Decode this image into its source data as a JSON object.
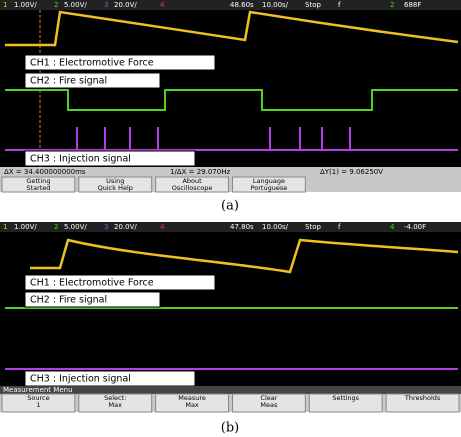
{
  "panels": [
    {
      "top_bar": [
        "1",
        "1.00V/",
        "2",
        "5.00V/",
        "3",
        "20.0V/",
        "4",
        "48.60s",
        "10.00s/",
        "Stop",
        "f",
        "2",
        "688F"
      ],
      "labels": [
        "CH1 : Electromotive Force",
        "CH2 : Fire signal",
        "CH3 : Injection signal"
      ],
      "status": [
        "ΔX = 34.400000000ms",
        "1/ΔX = 29.070Hz",
        "ΔY(1) = 9.06250V"
      ],
      "softkeys": [
        [
          "Getting",
          "Started"
        ],
        [
          "Using",
          "Quick Help"
        ],
        [
          "About",
          "Oscilloscope"
        ],
        [
          "Language",
          "Portuguese"
        ]
      ],
      "caption": "(a)"
    },
    {
      "top_bar": [
        "1",
        "1.00V/",
        "2",
        "5.00V/",
        "3",
        "20.0V/",
        "4",
        "47.80s",
        "10.00s/",
        "Stop",
        "f",
        "4",
        "-4.00F"
      ],
      "labels": [
        "CH1 : Electromotive Force",
        "CH2 : Fire signal",
        "CH3 : Injection signal"
      ],
      "menu_title": "Measurement Menu",
      "softkeys": [
        [
          "Source",
          "1"
        ],
        [
          "Select:",
          "Max"
        ],
        [
          "Measure",
          "Max"
        ],
        [
          "Clear",
          "Meas"
        ],
        [
          "Settings"
        ],
        [
          "Thresholds"
        ]
      ],
      "caption": "(b)"
    }
  ]
}
